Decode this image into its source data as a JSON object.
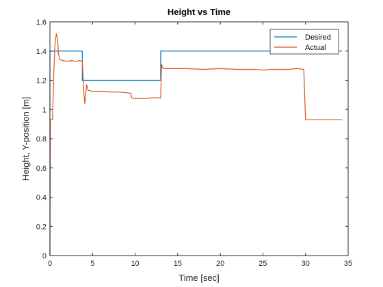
{
  "chart_data": {
    "type": "line",
    "title": "Height vs Time",
    "xlabel": "Time [sec]",
    "ylabel": "Height, Y-position [m]",
    "xlim": [
      0,
      35
    ],
    "ylim": [
      0,
      1.6
    ],
    "xticks": [
      0,
      5,
      10,
      15,
      20,
      25,
      30,
      35
    ],
    "yticks": [
      0,
      0.2,
      0.4,
      0.6,
      0.8,
      1,
      1.2,
      1.4,
      1.6
    ],
    "xtick_labels": [
      "0",
      "5",
      "10",
      "15",
      "20",
      "25",
      "30",
      "35"
    ],
    "ytick_labels": [
      "0",
      "0.2",
      "0.4",
      "0.6",
      "0.8",
      "1",
      "1.2",
      "1.4",
      "1.6"
    ],
    "grid": false,
    "legend_position": "top-right",
    "series": [
      {
        "name": "Desired",
        "color": "#0072BD",
        "x": [
          0,
          0,
          3.8,
          3.8,
          13.0,
          13.0,
          34.3
        ],
        "y": [
          0,
          1.4,
          1.4,
          1.2,
          1.2,
          1.4,
          1.4
        ]
      },
      {
        "name": "Actual",
        "color": "#D95319",
        "x": [
          0,
          0.05,
          0.15,
          0.3,
          0.45,
          0.6,
          0.75,
          0.9,
          1.0,
          1.2,
          1.5,
          2.0,
          2.5,
          3.0,
          3.5,
          3.8,
          3.85,
          4.0,
          4.1,
          4.2,
          4.3,
          4.5,
          5,
          6,
          7,
          8,
          9,
          9.5,
          9.6,
          10,
          11,
          12,
          12.9,
          13.0,
          13.1,
          13.2,
          13.4,
          14,
          16,
          18,
          20,
          22,
          24,
          25,
          26,
          27,
          28,
          29,
          29.8,
          29.9,
          30.0,
          30.2,
          31,
          32,
          33,
          34.3
        ],
        "y": [
          0,
          0.93,
          0.93,
          0.93,
          1.25,
          1.45,
          1.52,
          1.48,
          1.38,
          1.34,
          1.335,
          1.33,
          1.335,
          1.33,
          1.335,
          1.33,
          1.27,
          1.1,
          1.04,
          1.1,
          1.17,
          1.13,
          1.125,
          1.125,
          1.12,
          1.12,
          1.115,
          1.11,
          1.08,
          1.075,
          1.075,
          1.08,
          1.08,
          1.08,
          1.31,
          1.29,
          1.28,
          1.28,
          1.28,
          1.275,
          1.28,
          1.275,
          1.275,
          1.27,
          1.275,
          1.275,
          1.275,
          1.28,
          1.275,
          1.1,
          0.93,
          0.93,
          0.93,
          0.93,
          0.93,
          0.93
        ]
      }
    ]
  }
}
